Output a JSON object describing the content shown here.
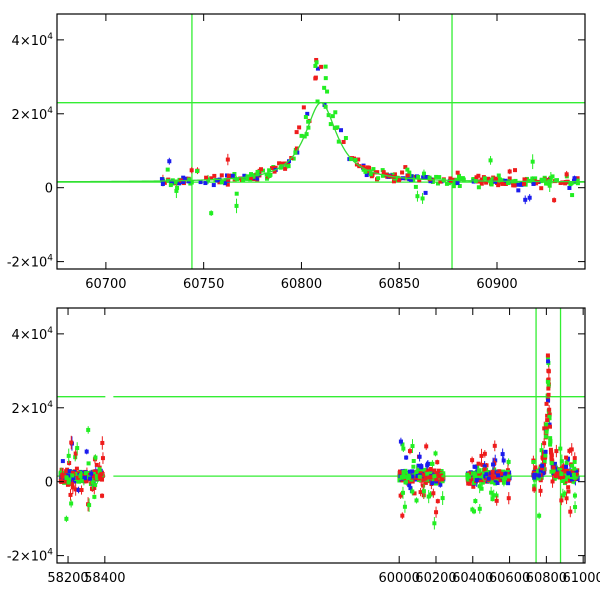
{
  "chart_data": [
    {
      "type": "scatter",
      "panel": "top",
      "title": "",
      "xlabel": "",
      "ylabel": "",
      "xlim": [
        60675,
        60945
      ],
      "ylim": [
        -22000,
        47000
      ],
      "x_ticks": [
        60700,
        60750,
        60800,
        60850,
        60900
      ],
      "x_tick_labels": [
        "60700",
        "60750",
        "60800",
        "60850",
        "60900"
      ],
      "y_ticks": [
        -20000,
        0,
        20000,
        40000
      ],
      "y_tick_labels": [
        {
          "mant": "-2×10",
          "exp": "4"
        },
        {
          "mant": "0",
          "exp": ""
        },
        {
          "mant": "2×10",
          "exp": "4"
        },
        {
          "mant": "4×10",
          "exp": "4"
        }
      ],
      "hlines": [
        1500,
        23000
      ],
      "vlines": [
        60744,
        60877
      ],
      "model": {
        "peak_x": 60810,
        "peak_y": 23000,
        "baseline": 1500,
        "width": 10
      },
      "series": [
        {
          "name": "red",
          "color": "#ee1c1c"
        },
        {
          "name": "green",
          "color": "#22ee22"
        },
        {
          "name": "blue",
          "color": "#1c1cee"
        }
      ],
      "segments": [
        [
          60728,
          60942
        ]
      ]
    },
    {
      "type": "scatter",
      "panel": "bottom",
      "title": "",
      "xlabel": "",
      "ylabel": "",
      "xlim": [
        58140,
        61010
      ],
      "ylim": [
        -22000,
        47000
      ],
      "x_ticks": [
        58200,
        58400,
        60000,
        60200,
        60400,
        60600,
        60800,
        61000
      ],
      "x_tick_labels": [
        "58200",
        "58400",
        "60000",
        "60200",
        "60400",
        "60600",
        "60800",
        "61000"
      ],
      "y_ticks": [
        -20000,
        0,
        20000,
        40000
      ],
      "y_tick_labels": [
        {
          "mant": "-2×10",
          "exp": "4"
        },
        {
          "mant": "0",
          "exp": ""
        },
        {
          "mant": "2×10",
          "exp": "4"
        },
        {
          "mant": "4×10",
          "exp": "4"
        }
      ],
      "hlines": [
        1500,
        23000
      ],
      "vlines": [
        60744,
        60877
      ],
      "model": {
        "peak_x": 60810,
        "peak_y": 23000,
        "baseline": 1500,
        "width": 10
      },
      "series": [
        {
          "name": "red",
          "color": "#ee1c1c"
        },
        {
          "name": "green",
          "color": "#22ee22"
        },
        {
          "name": "blue",
          "color": "#1c1cee"
        }
      ],
      "segments": [
        [
          58160,
          58390
        ],
        [
          60000,
          60240
        ],
        [
          60370,
          60600
        ],
        [
          60728,
          60970
        ]
      ]
    }
  ]
}
